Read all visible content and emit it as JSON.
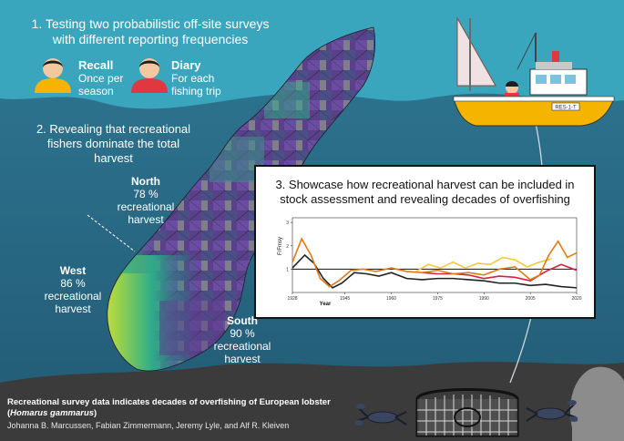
{
  "step1": {
    "title_line1": "1. Testing two probabilistic off-site surveys",
    "title_line2": "with different reporting frequencies",
    "recall_label": "Recall",
    "recall_desc": "Once per season",
    "diary_label": "Diary",
    "diary_desc_1": "For each",
    "diary_desc_2": "fishing trip"
  },
  "step2": {
    "line1": "2. Revealing that recreational",
    "line2": "fishers dominate the total",
    "line3": "harvest"
  },
  "regions": {
    "north": {
      "name": "North",
      "pct": "78 %",
      "l1": "recreational",
      "l2": "harvest"
    },
    "west": {
      "name": "West",
      "pct": "86 %",
      "l1": "recreational",
      "l2": "harvest"
    },
    "south": {
      "name": "South",
      "pct": "90 %",
      "l1": "recreational",
      "l2": "harvest"
    }
  },
  "step3": {
    "line1": "3. Showcase how recreational harvest can be included in",
    "line2": "stock assessment and revealing decades of overfishing"
  },
  "boat": {
    "registration": "RES-1-T"
  },
  "citation": {
    "title": "Recreational survey data indicates decades  of overfishing of European lobster",
    "species_open": "(",
    "species": "Homarus gammarus",
    "species_close": ")",
    "authors": "Johanna B. Marcussen, Fabian Zimmermann, Jeremy Lyle, and Alf R. Kleiven"
  },
  "colors": {
    "sky": "#3aa6bd",
    "sea": "#2c6a86",
    "seabed": "#3a3a3a",
    "series_black": "#222222",
    "series_red": "#d8203a",
    "series_orange": "#e07b12",
    "series_yellow": "#f5c842"
  },
  "chart_data": {
    "type": "line",
    "xlabel": "Year",
    "ylabel": "F/Fmsy",
    "xlim": [
      1928,
      2020
    ],
    "ylim": [
      0,
      3.2
    ],
    "x_ticks": [
      1928,
      1945,
      1960,
      1975,
      1990,
      2005,
      2020
    ],
    "y_ticks": [
      1,
      2,
      3
    ],
    "reference_line": 1,
    "series": [
      {
        "color_key": "series_black",
        "x": [
          1928,
          1932,
          1935,
          1938,
          1941,
          1944,
          1948,
          1952,
          1956,
          1960,
          1965,
          1970,
          1975,
          1980,
          1985,
          1990,
          1995,
          2000,
          2005,
          2010,
          2015,
          2020
        ],
        "values": [
          1.05,
          1.6,
          1.25,
          0.6,
          0.2,
          0.4,
          0.85,
          0.8,
          0.7,
          0.85,
          0.6,
          0.55,
          0.6,
          0.6,
          0.55,
          0.5,
          0.4,
          0.4,
          0.3,
          0.35,
          0.25,
          0.2
        ]
      },
      {
        "color_key": "series_yellow",
        "x": [
          1968,
          1972,
          1976,
          1980,
          1984,
          1988,
          1992,
          1996,
          2000,
          2004,
          2008,
          2012
        ],
        "values": [
          0.9,
          1.2,
          1.05,
          1.3,
          1.05,
          1.25,
          1.2,
          1.5,
          1.4,
          1.1,
          1.3,
          1.45
        ]
      },
      {
        "color_key": "series_red",
        "x": [
          1970,
          1975,
          1980,
          1985,
          1990,
          1995,
          2000,
          2005,
          2010,
          2015,
          2020
        ],
        "values": [
          0.85,
          0.8,
          0.8,
          0.75,
          0.6,
          0.7,
          0.65,
          0.5,
          0.9,
          1.2,
          0.95
        ]
      },
      {
        "color_key": "series_orange",
        "x": [
          1928,
          1931,
          1934,
          1937,
          1940,
          1943,
          1947,
          1951,
          1955,
          1960,
          1965,
          1970,
          1975,
          1980,
          1985,
          1990,
          1995,
          2000,
          2005,
          2008,
          2011,
          2014,
          2017,
          2020
        ],
        "values": [
          1.3,
          2.3,
          1.6,
          0.6,
          0.25,
          0.5,
          0.95,
          1.0,
          0.9,
          1.05,
          0.9,
          0.85,
          0.95,
          0.8,
          0.85,
          0.75,
          1.0,
          1.1,
          0.55,
          0.75,
          1.6,
          2.2,
          1.5,
          1.7
        ]
      }
    ]
  }
}
